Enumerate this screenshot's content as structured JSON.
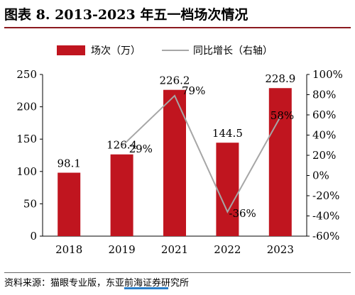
{
  "header": {
    "title": "图表 8.   2013-2023 年五一档场次情况"
  },
  "footer": {
    "source": "资料来源：猫眼专业版，东亚前海证券研究所"
  },
  "chart_data": {
    "type": "bar",
    "categories": [
      "2018",
      "2019",
      "2021",
      "2022",
      "2023"
    ],
    "series": [
      {
        "name": "场次（万）",
        "type": "bar",
        "axis": "left",
        "values": [
          98.1,
          126.4,
          226.2,
          144.5,
          228.9
        ],
        "labels": [
          "98.1",
          "126.4",
          "226.2",
          "144.5",
          "228.9"
        ]
      },
      {
        "name": "同比增长（右轴）",
        "type": "line",
        "axis": "right",
        "values": [
          null,
          29,
          79,
          -36,
          58
        ],
        "labels": [
          "",
          "29%",
          "79%",
          "-36%",
          "58%"
        ]
      }
    ],
    "y_left": {
      "lim": [
        0,
        250
      ],
      "ticks": [
        "0",
        "50",
        "100",
        "150",
        "200",
        "250"
      ]
    },
    "y_right": {
      "lim": [
        -60,
        100
      ],
      "ticks": [
        "-60%",
        "-40%",
        "-20%",
        "0%",
        "20%",
        "40%",
        "60%",
        "80%",
        "100%"
      ]
    },
    "legend": "top",
    "grid": false,
    "colors": {
      "bar": "#c0151f",
      "line": "#a6a6a6",
      "rule": "#8b1a1f"
    }
  }
}
